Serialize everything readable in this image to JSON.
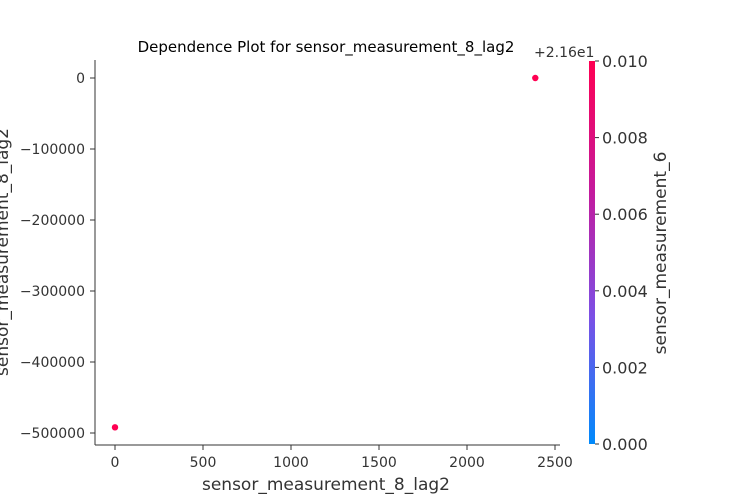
{
  "chart_data": {
    "type": "scatter",
    "title": "Dependence Plot for sensor_measurement_8_lag2",
    "xlabel": "sensor_measurement_8_lag2",
    "ylabel": "sensor_measurement_8_lag2",
    "y_offset_label": "+2.16e1",
    "xlim": [
      -60,
      2500
    ],
    "ylim": [
      -520000,
      25000
    ],
    "x_ticks": [
      0,
      500,
      1000,
      1500,
      2000,
      2500
    ],
    "x_tick_labels": [
      "0",
      "500",
      "1000",
      "1500",
      "2000",
      "2500"
    ],
    "y_ticks": [
      0,
      -100000,
      -200000,
      -300000,
      -400000,
      -500000
    ],
    "y_tick_labels": [
      "0",
      "−100000",
      "−200000",
      "−300000",
      "−400000",
      "−500000"
    ],
    "points": [
      {
        "x": 0,
        "y": -492000,
        "color_value": 0.01
      },
      {
        "x": 2388,
        "y": 0,
        "color_value": 0.01
      }
    ],
    "colorbar": {
      "label": "sensor_measurement_6",
      "min": 0.0,
      "max": 0.01,
      "ticks": [
        0.0,
        0.002,
        0.004,
        0.006,
        0.008,
        0.01
      ],
      "tick_labels": [
        "0.000",
        "0.002",
        "0.004",
        "0.006",
        "0.008",
        "0.010"
      ],
      "colors": [
        "#008afb",
        "#7b50e6",
        "#c41a9d",
        "#ff0052"
      ]
    },
    "grid": false
  }
}
